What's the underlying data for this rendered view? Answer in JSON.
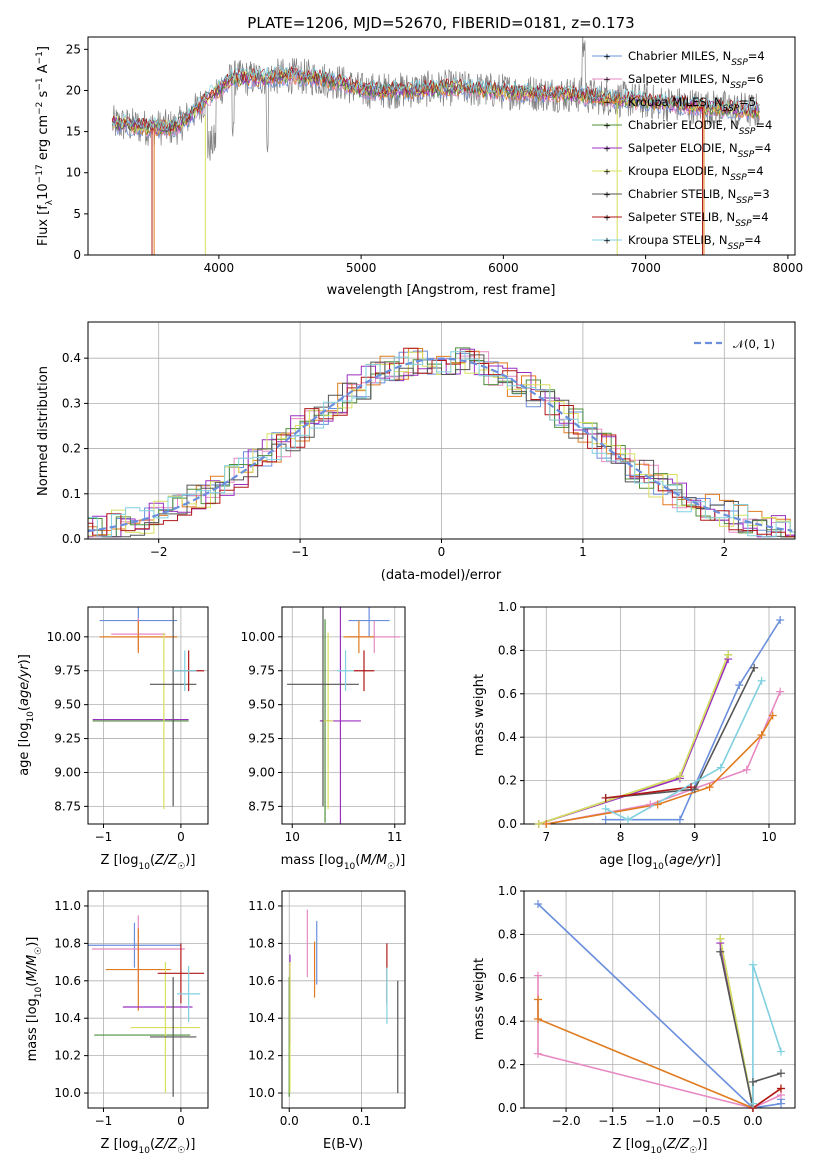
{
  "title": "PLATE=1206, MJD=52670, FIBERID=0181, z=0.173",
  "colors": {
    "Chabrier MILES": "#6a8fdc",
    "Salpeter MILES": "#e78ac3",
    "Kroupa MILES": "#e07b20",
    "Chabrier ELODIE": "#4f8f3a",
    "Salpeter ELODIE": "#9b30c0",
    "Kroupa ELODIE": "#d8e060",
    "Chabrier STELIB": "#555555",
    "Salpeter STELIB": "#b01818",
    "Kroupa STELIB": "#80d0e0",
    "data": "#808080",
    "normal": "#6a8fdc",
    "grid": "#b0b0b0"
  },
  "legend1": [
    {
      "name": "Chabrier MILES",
      "nlabel": "N",
      "nsub": "SSP",
      "nval": "=4"
    },
    {
      "name": "Salpeter MILES",
      "nlabel": "N",
      "nsub": "SSP",
      "nval": "=6"
    },
    {
      "name": "Kroupa MILES",
      "nlabel": "N",
      "nsub": "SSP",
      "nval": "=5"
    },
    {
      "name": "Chabrier ELODIE",
      "nlabel": "N",
      "nsub": "SSP",
      "nval": "=4"
    },
    {
      "name": "Salpeter ELODIE",
      "nlabel": "N",
      "nsub": "SSP",
      "nval": "=4"
    },
    {
      "name": "Kroupa ELODIE",
      "nlabel": "N",
      "nsub": "SSP",
      "nval": "=4"
    },
    {
      "name": "Chabrier STELIB",
      "nlabel": "N",
      "nsub": "SSP",
      "nval": "=3"
    },
    {
      "name": "Salpeter STELIB",
      "nlabel": "N",
      "nsub": "SSP",
      "nval": "=4"
    },
    {
      "name": "Kroupa STELIB",
      "nlabel": "N",
      "nsub": "SSP",
      "nval": "=4"
    }
  ],
  "legend2": {
    "label": "𝒩(0, 1)"
  },
  "chart_data": [
    {
      "id": "spectrum",
      "type": "line",
      "xlabel": "wavelength [Angstrom, rest frame]",
      "ylabel": "Flux [f_λ 10^-17 erg cm^-2 s^-1 A^-1]",
      "xlim": [
        3080,
        8050
      ],
      "ylim": [
        0,
        26.5
      ],
      "xticks": [
        4000,
        5000,
        6000,
        7000,
        8000
      ],
      "yticks": [
        0,
        5,
        10,
        15,
        20,
        25
      ],
      "grid": false,
      "legend": "upper-right",
      "data_range": [
        3250,
        7800
      ],
      "shape_points": [
        [
          3250,
          16
        ],
        [
          3500,
          15.5
        ],
        [
          3700,
          15.5
        ],
        [
          3800,
          17
        ],
        [
          3950,
          19.5
        ],
        [
          4100,
          21.5
        ],
        [
          4300,
          21.5
        ],
        [
          4500,
          21.8
        ],
        [
          4700,
          21.5
        ],
        [
          4850,
          21
        ],
        [
          5000,
          20
        ],
        [
          5300,
          20
        ],
        [
          5600,
          20.3
        ],
        [
          5900,
          20
        ],
        [
          6200,
          19.7
        ],
        [
          6500,
          19.5
        ],
        [
          6800,
          19
        ],
        [
          7100,
          18.5
        ],
        [
          7400,
          18
        ],
        [
          7800,
          17.5
        ]
      ],
      "drops": [
        {
          "series": "Salpeter STELIB",
          "x_from": 3250,
          "x_to": 3530
        },
        {
          "series": "Kroupa STELIB",
          "x_from": 3250,
          "x_to": 3530
        },
        {
          "series": "Kroupa ELODIE",
          "x_from": 3900,
          "x_to": 6800
        },
        {
          "series": "Salpeter ELODIE",
          "x_from": 3900,
          "x_to": 6800
        },
        {
          "series": "Chabrier ELODIE",
          "x_from": 3900,
          "x_to": 6800
        },
        {
          "series": "Salpeter STELIB",
          "x_from": 3530,
          "x_to": 7400
        },
        {
          "series": "Kroupa MILES",
          "x_from": 3530,
          "x_to": 7400
        }
      ]
    },
    {
      "id": "residuals",
      "type": "step",
      "xlabel": "(data-model)/error",
      "ylabel": "Normed distribution",
      "xlim": [
        -2.5,
        2.5
      ],
      "ylim": [
        0,
        0.48
      ],
      "xticks": [
        -2,
        -1,
        0,
        1,
        2
      ],
      "yticks": [
        0.0,
        0.1,
        0.2,
        0.3,
        0.4
      ],
      "grid": true,
      "legend": "upper-right",
      "bin_width": 0.1,
      "gaussian": {
        "mean": 0,
        "sigma": 1
      }
    },
    {
      "id": "age-Z",
      "type": "errorbar",
      "xlabel": "Z [log10(Z/Z☉)]",
      "ylabel": "age  [log10(age/yr)]",
      "xlim": [
        -1.2,
        0.35
      ],
      "ylim": [
        8.62,
        10.22
      ],
      "xticks": [
        -1,
        0
      ],
      "yticks": [
        8.75,
        9.0,
        9.25,
        9.5,
        9.75,
        10.0
      ],
      "points": [
        {
          "series": "Chabrier MILES",
          "x": -0.55,
          "xerr": 0.5,
          "y": 10.12,
          "yerr": 0.12
        },
        {
          "series": "Salpeter MILES",
          "x": -0.55,
          "xerr": 0.35,
          "y": 10.02,
          "yerr": 0.12
        },
        {
          "series": "Kroupa MILES",
          "x": -0.55,
          "xerr": 0.5,
          "y": 10.0,
          "yerr": 0.12
        },
        {
          "series": "Chabrier ELODIE",
          "x": -0.52,
          "xerr": 0.62,
          "y": 9.38,
          "yerr": 0.0
        },
        {
          "series": "Salpeter ELODIE",
          "x": -0.52,
          "xerr": 0.62,
          "y": 9.39,
          "yerr": 0.0
        },
        {
          "series": "Kroupa ELODIE",
          "x": -0.22,
          "xerr": 0.0,
          "y": 9.38,
          "yerr": 0.65
        },
        {
          "series": "Chabrier STELIB",
          "x": -0.1,
          "xerr": 0.3,
          "y": 9.65,
          "yerr": 0.9
        },
        {
          "series": "Salpeter STELIB",
          "x": 0.1,
          "xerr": 0.2,
          "y": 9.75,
          "yerr": 0.15
        },
        {
          "series": "Kroupa STELIB",
          "x": 0.05,
          "xerr": 0.15,
          "y": 9.75,
          "yerr": 0.15
        }
      ]
    },
    {
      "id": "age-mass",
      "type": "errorbar",
      "xlabel": "mass [log10(M/M☉)]",
      "ylabel": "",
      "xlim": [
        9.9,
        11.1
      ],
      "ylim": [
        8.62,
        10.22
      ],
      "xticks": [
        10,
        11
      ],
      "yticks": [
        8.75,
        9.0,
        9.25,
        9.5,
        9.75,
        10.0
      ],
      "points": [
        {
          "series": "Chabrier MILES",
          "x": 10.75,
          "xerr": 0.2,
          "y": 10.12,
          "yerr": 0.12
        },
        {
          "series": "Salpeter MILES",
          "x": 10.8,
          "xerr": 0.25,
          "y": 10.0,
          "yerr": 0.12
        },
        {
          "series": "Kroupa MILES",
          "x": 10.65,
          "xerr": 0.15,
          "y": 10.0,
          "yerr": 0.12
        },
        {
          "series": "Chabrier ELODIE",
          "x": 10.32,
          "xerr": 0.05,
          "y": 9.38,
          "yerr": 0.75
        },
        {
          "series": "Salpeter ELODIE",
          "x": 10.47,
          "xerr": 0.2,
          "y": 9.38,
          "yerr": 0.85
        },
        {
          "series": "Kroupa ELODIE",
          "x": 10.35,
          "xerr": 0.05,
          "y": 9.38,
          "yerr": 0.65
        },
        {
          "series": "Chabrier STELIB",
          "x": 10.3,
          "xerr": 0.35,
          "y": 9.65,
          "yerr": 0.9
        },
        {
          "series": "Salpeter STELIB",
          "x": 10.7,
          "xerr": 0.1,
          "y": 9.75,
          "yerr": 0.15
        },
        {
          "series": "Kroupa STELIB",
          "x": 10.52,
          "xerr": 0.08,
          "y": 9.75,
          "yerr": 0.15
        }
      ]
    },
    {
      "id": "weight-age",
      "type": "line",
      "xlabel": "age  [log10(age/yr)]",
      "ylabel": "mass weight",
      "xlim": [
        6.7,
        10.35
      ],
      "ylim": [
        0,
        1.0
      ],
      "xticks": [
        7,
        8,
        9,
        10
      ],
      "yticks": [
        0.0,
        0.2,
        0.4,
        0.6,
        0.8,
        1.0
      ],
      "series": [
        {
          "name": "Chabrier MILES",
          "x": [
            7.8,
            8.8,
            9.6,
            10.15
          ],
          "y": [
            0.02,
            0.02,
            0.64,
            0.94
          ]
        },
        {
          "name": "Salpeter MILES",
          "x": [
            7.0,
            8.4,
            9.7,
            10.15
          ],
          "y": [
            0.0,
            0.09,
            0.25,
            0.61
          ]
        },
        {
          "name": "Kroupa MILES",
          "x": [
            7.0,
            8.5,
            9.2,
            9.9,
            10.05
          ],
          "y": [
            0.0,
            0.09,
            0.17,
            0.41,
            0.5
          ]
        },
        {
          "name": "Chabrier ELODIE",
          "x": [
            6.9,
            8.8,
            9.45
          ],
          "y": [
            0.0,
            0.22,
            0.78
          ]
        },
        {
          "name": "Salpeter ELODIE",
          "x": [
            6.9,
            8.8,
            9.45
          ],
          "y": [
            0.0,
            0.21,
            0.76
          ]
        },
        {
          "name": "Kroupa ELODIE",
          "x": [
            6.9,
            8.8,
            9.45
          ],
          "y": [
            0.0,
            0.22,
            0.78
          ]
        },
        {
          "name": "Chabrier STELIB",
          "x": [
            7.8,
            9.0,
            9.8
          ],
          "y": [
            0.12,
            0.16,
            0.72
          ]
        },
        {
          "name": "Salpeter STELIB",
          "x": [
            7.8,
            8.95
          ],
          "y": [
            0.12,
            0.17
          ]
        },
        {
          "name": "Kroupa STELIB",
          "x": [
            7.8,
            8.1,
            9.35,
            9.9
          ],
          "y": [
            0.07,
            0.02,
            0.26,
            0.66
          ]
        }
      ]
    },
    {
      "id": "mass-Z",
      "type": "errorbar",
      "xlabel": "Z [log10(Z/Z☉)]",
      "ylabel": "mass [log10(M/M☉)]",
      "xlim": [
        -1.2,
        0.35
      ],
      "ylim": [
        9.92,
        11.08
      ],
      "xticks": [
        -1,
        0
      ],
      "yticks": [
        10.0,
        10.2,
        10.4,
        10.6,
        10.8,
        11.0
      ],
      "points": [
        {
          "series": "Chabrier MILES",
          "x": -0.6,
          "xerr": 0.6,
          "y": 10.79,
          "yerr": 0.12
        },
        {
          "series": "Salpeter MILES",
          "x": -0.55,
          "xerr": 0.6,
          "y": 10.77,
          "yerr": 0.18
        },
        {
          "series": "Kroupa MILES",
          "x": -0.55,
          "xerr": 0.42,
          "y": 10.66,
          "yerr": 0.22
        },
        {
          "series": "Chabrier ELODIE",
          "x": -0.5,
          "xerr": 0.62,
          "y": 10.31,
          "yerr": 0.0
        },
        {
          "series": "Salpeter ELODIE",
          "x": -0.3,
          "xerr": 0.45,
          "y": 10.46,
          "yerr": 0.0
        },
        {
          "series": "Kroupa ELODIE",
          "x": -0.2,
          "xerr": 0.45,
          "y": 10.35,
          "yerr": 0.35
        },
        {
          "series": "Chabrier STELIB",
          "x": -0.1,
          "xerr": 0.3,
          "y": 10.3,
          "yerr": 0.32
        },
        {
          "series": "Salpeter STELIB",
          "x": 0.0,
          "xerr": 0.3,
          "y": 10.64,
          "yerr": 0.16
        },
        {
          "series": "Kroupa STELIB",
          "x": 0.1,
          "xerr": 0.15,
          "y": 10.53,
          "yerr": 0.15
        }
      ]
    },
    {
      "id": "mass-EBV",
      "type": "errorbar",
      "xlabel": "E(B-V)",
      "ylabel": "",
      "xlim": [
        -0.01,
        0.16
      ],
      "ylim": [
        9.92,
        11.08
      ],
      "xticks": [
        0.0,
        0.1
      ],
      "yticks": [
        10.0,
        10.2,
        10.4,
        10.6,
        10.8,
        11.0
      ],
      "points": [
        {
          "series": "Chabrier MILES",
          "x": 0.038,
          "y": 10.75,
          "yerr": 0.17
        },
        {
          "series": "Salpeter MILES",
          "x": 0.025,
          "y": 10.8,
          "yerr": 0.18
        },
        {
          "series": "Kroupa MILES",
          "x": 0.035,
          "y": 10.66,
          "yerr": 0.15
        },
        {
          "series": "Chabrier ELODIE",
          "x": 0.0,
          "y": 10.3,
          "yerr": 0.32
        },
        {
          "series": "Salpeter ELODIE",
          "x": 0.001,
          "y": 10.5,
          "yerr": 0.24
        },
        {
          "series": "Kroupa ELODIE",
          "x": 0.001,
          "y": 10.35,
          "yerr": 0.35
        },
        {
          "series": "Chabrier STELIB",
          "x": 0.15,
          "y": 10.3,
          "yerr": 0.3
        },
        {
          "series": "Salpeter STELIB",
          "x": 0.135,
          "y": 10.64,
          "yerr": 0.16
        },
        {
          "series": "Kroupa STELIB",
          "x": 0.135,
          "y": 10.52,
          "yerr": 0.15
        }
      ]
    },
    {
      "id": "weight-Z",
      "type": "line",
      "xlabel": "Z [log10(Z/Z☉)]",
      "ylabel": "mass weight",
      "xlim": [
        -2.45,
        0.45
      ],
      "ylim": [
        0,
        1.0
      ],
      "xticks": [
        -2.0,
        -1.5,
        -1.0,
        -0.5,
        0.0
      ],
      "yticks": [
        0.0,
        0.2,
        0.4,
        0.6,
        0.8,
        1.0
      ],
      "series": [
        {
          "name": "Chabrier MILES",
          "x": [
            -2.3,
            0.0,
            0.3,
            0.3
          ],
          "y": [
            0.94,
            0.0,
            0.02,
            0.04
          ]
        },
        {
          "name": "Salpeter MILES",
          "x": [
            -2.3,
            -2.3,
            0.0,
            0.3
          ],
          "y": [
            0.61,
            0.25,
            0.0,
            0.06
          ]
        },
        {
          "name": "Kroupa MILES",
          "x": [
            -2.3,
            -2.3,
            0.0,
            0.3
          ],
          "y": [
            0.5,
            0.41,
            0.0,
            0.09
          ]
        },
        {
          "name": "Chabrier ELODIE",
          "x": [
            -0.35,
            0.0
          ],
          "y": [
            0.78,
            0.0
          ]
        },
        {
          "name": "Salpeter ELODIE",
          "x": [
            -0.35,
            0.0
          ],
          "y": [
            0.76,
            0.0
          ]
        },
        {
          "name": "Kroupa ELODIE",
          "x": [
            -0.35,
            0.0
          ],
          "y": [
            0.78,
            0.0
          ]
        },
        {
          "name": "Chabrier STELIB",
          "x": [
            -0.35,
            0.0,
            0.0,
            0.3
          ],
          "y": [
            0.72,
            0.0,
            0.12,
            0.16
          ]
        },
        {
          "name": "Salpeter STELIB",
          "x": [
            0.0,
            0.3
          ],
          "y": [
            0.0,
            0.09
          ]
        },
        {
          "name": "Kroupa STELIB",
          "x": [
            0.0,
            0.0,
            0.3
          ],
          "y": [
            0.02,
            0.66,
            0.26
          ]
        }
      ]
    }
  ]
}
